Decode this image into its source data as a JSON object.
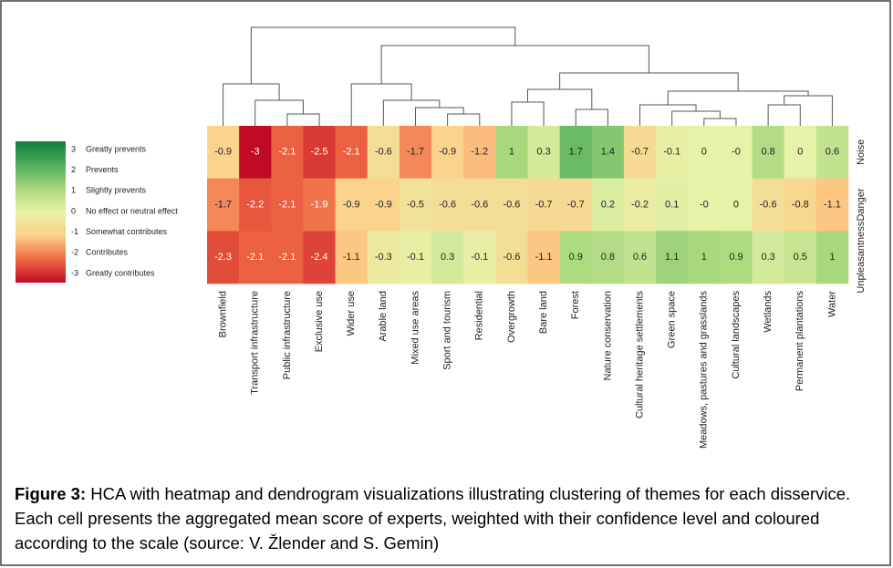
{
  "chart_data": {
    "type": "heatmap",
    "categories": [
      "Brownfield",
      "Transport infrastructure",
      "Public infrastructure",
      "Exclusive use",
      "Wider use",
      "Arable land",
      "Mixed use areas",
      "Sport and tourism",
      "Residential",
      "Overgrowth",
      "Bare land",
      "Forest",
      "Nature conservation",
      "Cultural heritage settlements",
      "Green space",
      "Meadows, pastures and grasslands",
      "Cultural landscapes",
      "Wetlands",
      "Permanent plantations",
      "Water"
    ],
    "rows": [
      "Noise",
      "Danger",
      "Unpleasantness"
    ],
    "values": [
      [
        -0.9,
        -3,
        -2.1,
        -2.5,
        -2.1,
        -0.6,
        -1.7,
        -0.9,
        -1.2,
        1,
        0.3,
        1.7,
        1.4,
        -0.7,
        -0.1,
        0,
        0,
        0.8,
        0,
        0.6
      ],
      [
        -1.7,
        -2.2,
        -2.1,
        -1.9,
        -0.9,
        -0.9,
        -0.5,
        -0.6,
        -0.6,
        -0.6,
        -0.7,
        -0.7,
        0.2,
        -0.2,
        0.1,
        0,
        0,
        -0.6,
        -0.8,
        -1.1
      ],
      [
        -2.3,
        -2.1,
        -2.1,
        -2.4,
        -1.1,
        -0.3,
        -0.1,
        0.3,
        -0.1,
        -0.6,
        -1.1,
        0.9,
        0.8,
        0.6,
        1.1,
        1,
        0.9,
        0.3,
        0.5,
        1
      ]
    ],
    "value_labels": [
      [
        "-0.9",
        "-3",
        "-2.1",
        "-2.5",
        "-2.1",
        "-0.6",
        "-1.7",
        "-0.9",
        "-1.2",
        "1",
        "0.3",
        "1.7",
        "1.4",
        "-0.7",
        "-0.1",
        "0",
        "-0",
        "0.8",
        "0",
        "0.6"
      ],
      [
        "-1.7",
        "-2.2",
        "-2.1",
        "-1.9",
        "-0.9",
        "-0.9",
        "-0.5",
        "-0.6",
        "-0.6",
        "-0.6",
        "-0.7",
        "-0.7",
        "0.2",
        "-0.2",
        "0.1",
        "-0",
        "0",
        "-0.6",
        "-0.8",
        "-1.1"
      ],
      [
        "-2.3",
        "-2.1",
        "-2.1",
        "-2.4",
        "-1.1",
        "-0.3",
        "-0.1",
        "0.3",
        "-0.1",
        "-0.6",
        "-1.1",
        "0.9",
        "0.8",
        "0.6",
        "1.1",
        "1",
        "0.9",
        "0.3",
        "0.5",
        "1"
      ]
    ],
    "legend": {
      "ticks": [
        3,
        2,
        1,
        0,
        -1,
        -2,
        -3
      ],
      "labels": [
        "Greatly prevents",
        "Prevents",
        "Slightly prevents",
        "No effect or neutral effect",
        "Somewhat contributes",
        "Contributes",
        "Greatly contributes"
      ],
      "colors": [
        "#0f7f3b",
        "#4fae5b",
        "#a8d77e",
        "#e6f2a8",
        "#fdd08a",
        "#ef6a43",
        "#c20a25"
      ]
    },
    "dendrogram": true,
    "caption_label": "Figure 3:",
    "caption": "HCA with heatmap and dendrogram visualizations illustrating clustering of themes for each disservice. Each cell presents the aggregated mean score of experts, weighted with their confidence level and coloured according to the scale (source: V. Žlender and S. Gemin)"
  }
}
